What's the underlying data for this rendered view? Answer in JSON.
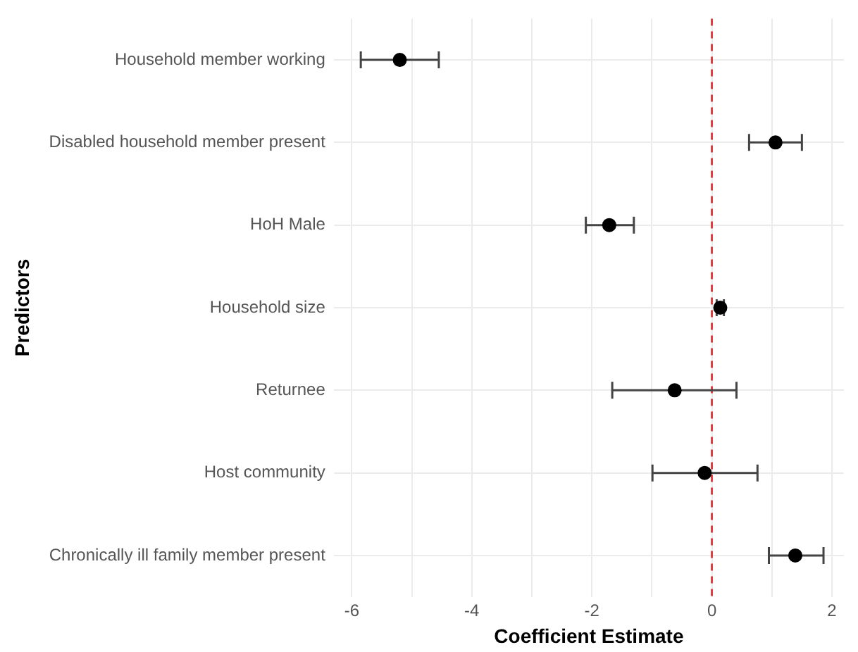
{
  "chart_data": {
    "type": "scatter",
    "orientation": "horizontal",
    "xlabel": "Coefficient Estimate",
    "ylabel": "Predictors",
    "categories": [
      "Household member working",
      "Disabled household member present",
      "HoH Male",
      "Household size",
      "Returnee",
      "Host community",
      "Chronically ill family member present"
    ],
    "color": "#000000",
    "values": [
      -5.2,
      1.06,
      -1.71,
      0.14,
      -0.62,
      -0.12,
      1.39
    ],
    "errors": [
      [
        -5.85,
        -4.55
      ],
      [
        0.62,
        1.5
      ],
      [
        -2.1,
        -1.3
      ],
      [
        0.08,
        0.2
      ],
      [
        -1.66,
        0.41
      ],
      [
        -0.99,
        0.76
      ],
      [
        0.95,
        1.86
      ]
    ],
    "xlim": [
      -6.3,
      2.2
    ],
    "xticks": [
      -6,
      {
        "value": -5,
        "label": null
      },
      -4,
      {
        "value": -3,
        "label": null
      },
      -2,
      {
        "value": -1,
        "label": null
      },
      0,
      {
        "value": 1,
        "label": null
      },
      2
    ],
    "ref_lines": [
      {
        "axis": "x",
        "value": 0,
        "color": "#d62728",
        "line_style": "dashed"
      }
    ],
    "grid": true,
    "marker": "circle"
  }
}
